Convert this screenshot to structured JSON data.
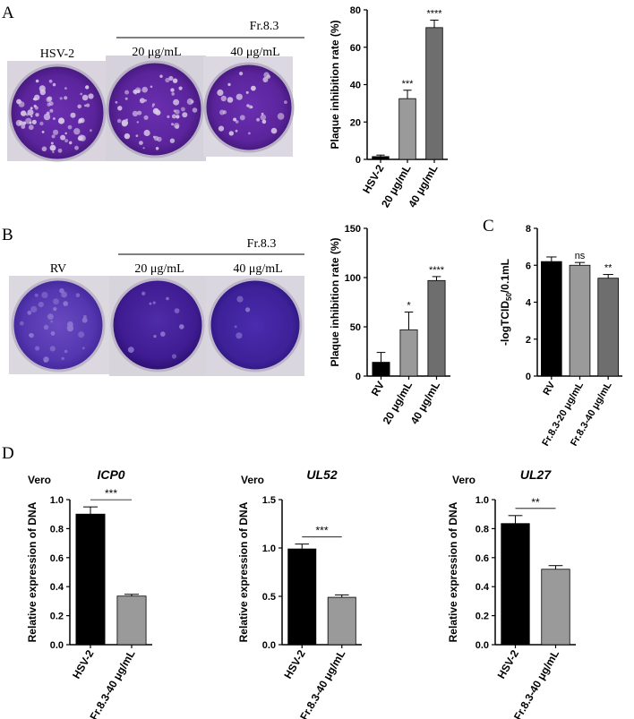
{
  "panels": {
    "A": {
      "letter": "A",
      "photo": {
        "labels": [
          "HSV-2",
          "20 μg/mL",
          "40 μg/mL"
        ],
        "group_label": "Fr.8.3"
      },
      "chart_data": {
        "type": "bar",
        "categories": [
          "HSV-2",
          "20 μg/mL",
          "40 μg/mL"
        ],
        "values": [
          1.5,
          32.5,
          70.5
        ],
        "errors": [
          0.8,
          4.5,
          4.0
        ],
        "colors": [
          "#000000",
          "#9a9a9a",
          "#6e6e6e"
        ],
        "significance": [
          "",
          "***",
          "****"
        ],
        "ylabel": "Plaque inhibition rate (%)",
        "ylim": [
          0,
          80
        ],
        "yticks": [
          "0",
          "20",
          "40",
          "60",
          "80"
        ],
        "xlabel": "",
        "title": ""
      }
    },
    "B": {
      "letter": "B",
      "photo": {
        "labels": [
          "RV",
          "20 μg/mL",
          "40 μg/mL"
        ],
        "group_label": "Fr.8.3"
      },
      "chart_data": {
        "type": "bar",
        "categories": [
          "RV",
          "20 μg/mL",
          "40 μg/mL"
        ],
        "values": [
          14,
          47,
          97
        ],
        "errors": [
          10,
          18,
          4
        ],
        "colors": [
          "#000000",
          "#9a9a9a",
          "#6e6e6e"
        ],
        "significance": [
          "",
          "*",
          "****"
        ],
        "ylabel": "Plaque inhibition rate (%)",
        "ylim": [
          0,
          150
        ],
        "yticks": [
          "0",
          "50",
          "100",
          "150"
        ],
        "xlabel": "",
        "title": ""
      }
    },
    "C": {
      "letter": "C",
      "chart_data": {
        "type": "bar",
        "categories": [
          "RV",
          "Fr.8.3-20 μg/mL",
          "Fr.8.3-40 μg/mL"
        ],
        "values": [
          6.2,
          6.0,
          5.3
        ],
        "errors": [
          0.25,
          0.15,
          0.2
        ],
        "colors": [
          "#000000",
          "#9a9a9a",
          "#6e6e6e"
        ],
        "significance": [
          "",
          "ns",
          "**"
        ],
        "ylabel_pre": "-logTCID",
        "ylabel_sub": "50",
        "ylabel_post": "/0.1mL",
        "ylim": [
          0,
          8
        ],
        "yticks": [
          "0",
          "2",
          "4",
          "6",
          "8"
        ],
        "xlabel": "",
        "title": ""
      }
    },
    "D": {
      "letter": "D",
      "charts": [
        {
          "cell": "Vero",
          "chart_data": {
            "type": "bar",
            "title": "ICP0",
            "categories": [
              "HSV-2",
              "Fr.8.3-40 μg/mL"
            ],
            "values": [
              0.9,
              0.335
            ],
            "errors": [
              0.05,
              0.012
            ],
            "colors": [
              "#000000",
              "#9a9a9a"
            ],
            "significance": "***",
            "ylabel": "Relative expression of DNA",
            "ylim": [
              0,
              1.0
            ],
            "yticks": [
              "0.0",
              "0.2",
              "0.4",
              "0.6",
              "0.8",
              "1.0"
            ],
            "xlabel": ""
          }
        },
        {
          "cell": "Vero",
          "chart_data": {
            "type": "bar",
            "title": "UL52",
            "categories": [
              "HSV-2",
              "Fr.8.3-40 μg/mL"
            ],
            "values": [
              0.99,
              0.49
            ],
            "errors": [
              0.05,
              0.025
            ],
            "colors": [
              "#000000",
              "#9a9a9a"
            ],
            "significance": "***",
            "ylabel": "Relative expression of DNA",
            "ylim": [
              0,
              1.5
            ],
            "yticks": [
              "0.0",
              "0.5",
              "1.0",
              "1.5"
            ],
            "xlabel": ""
          }
        },
        {
          "cell": "Vero",
          "chart_data": {
            "type": "bar",
            "title": "UL27",
            "categories": [
              "HSV-2",
              "Fr.8.3-40 μg/mL"
            ],
            "values": [
              0.835,
              0.52
            ],
            "errors": [
              0.055,
              0.025
            ],
            "colors": [
              "#000000",
              "#9a9a9a"
            ],
            "significance": "**",
            "ylabel": "Relative expression of DNA",
            "ylim": [
              0,
              1.0
            ],
            "yticks": [
              "0.0",
              "0.2",
              "0.4",
              "0.6",
              "0.8",
              "1.0"
            ],
            "xlabel": ""
          }
        }
      ]
    }
  }
}
